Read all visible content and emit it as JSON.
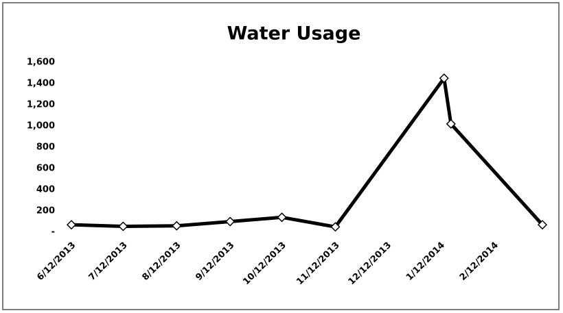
{
  "chart_data": {
    "type": "line",
    "title": "Water Usage",
    "x": [
      "6/12/2013",
      "7/12/2013",
      "8/12/2013",
      "9/12/2013",
      "10/12/2013",
      "11/12/2013",
      "1/14/2014",
      "1/18/2014",
      "3/12/2014"
    ],
    "series": [
      {
        "name": "Water Usage",
        "color": "#000000",
        "values": [
          70,
          55,
          60,
          100,
          140,
          50,
          1450,
          1020,
          70
        ]
      }
    ],
    "xlim": [
      "6/12/2013",
      "3/12/2014"
    ],
    "xticks": [
      "6/12/2013",
      "7/12/2013",
      "8/12/2013",
      "9/12/2013",
      "10/12/2013",
      "11/12/2013",
      "12/12/2013",
      "1/12/2014",
      "2/12/2014"
    ],
    "ylim": [
      0,
      1600
    ],
    "yticks": [
      {
        "value": 0,
        "label": "-"
      },
      200,
      400,
      600,
      800,
      {
        "value": 1000,
        "label": "1,000"
      },
      {
        "value": 1200,
        "label": "1,200"
      },
      {
        "value": 1400,
        "label": "1,400"
      },
      {
        "value": 1600,
        "label": "1,600"
      }
    ],
    "grid": false
  }
}
